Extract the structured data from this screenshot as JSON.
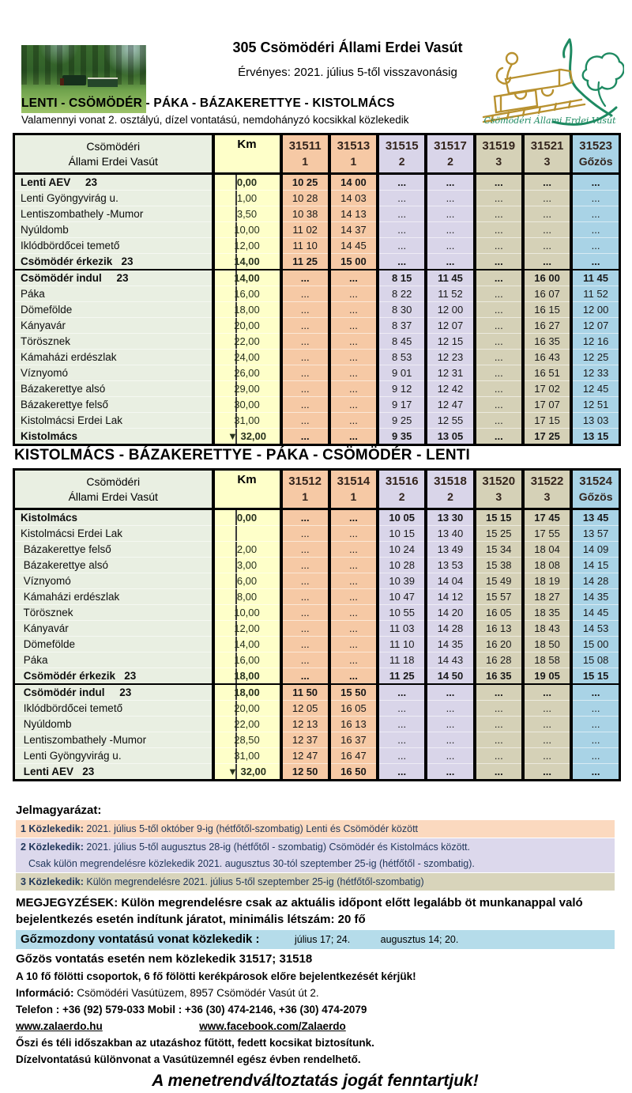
{
  "colors": {
    "peach": "#f6c9a5",
    "lavender": "#d9d5e9",
    "tan": "#d5d1b7",
    "blue": "#a9d3e6",
    "km_yellow": "#feffc9",
    "station_green": "#e9efe2",
    "legend_peach": "#fbd9bf",
    "legend_lavender": "#dcd8ec",
    "legend_tan": "#d8d4bb",
    "steam_bg": "#b5dcea",
    "logo_green": "#1e8a62",
    "logo_gold": "#b8912f"
  },
  "header": {
    "title": "305 Csömödéri Állami Erdei Vasút",
    "validity": "Érvényes: 2021. július 5-től visszavonásig",
    "route_line": "LENTI - CSÖMÖDÉR - PÁKA -  BÁZAKERETTYE - KISTOLMÁCS",
    "note": "Valamennyi vonat 2. osztályú, dízel vontatású, nemdohányzó kocsikkal közlekedik",
    "logo_caption": "Csömödéri Állami Erdei Vasút"
  },
  "section2_title": "KISTOLMÁCS - BÁZAKERETTYE - PÁKA - CSÖMÖDÉR - LENTI",
  "tables": [
    {
      "corner_line1": "Csömödéri",
      "corner_line2": "Állami Erdei Vasút",
      "km_label": "Km",
      "trains": [
        {
          "number": "31511",
          "note": "1",
          "color_key": "peach"
        },
        {
          "number": "31513",
          "note": "1",
          "color_key": "peach"
        },
        {
          "number": "31515",
          "note": "2",
          "color_key": "lavender"
        },
        {
          "number": "31517",
          "note": "2",
          "color_key": "lavender"
        },
        {
          "number": "31519",
          "note": "3",
          "color_key": "tan"
        },
        {
          "number": "31521",
          "note": "3",
          "color_key": "tan"
        },
        {
          "number": "31523",
          "note": "Gőzös",
          "color_key": "blue"
        }
      ],
      "rows": [
        {
          "station": "Lenti AEV     23",
          "km": "0,00",
          "b": true,
          "t": [
            "10 25",
            "14 00",
            "...",
            "...",
            "...",
            "...",
            "..."
          ]
        },
        {
          "station": "Lenti Gyöngyvirág u.",
          "km": "1,00",
          "t": [
            "10 28",
            "14 03",
            "...",
            "...",
            "...",
            "...",
            "..."
          ]
        },
        {
          "station": "Lentiszombathely -Mumor",
          "km": "3,50",
          "t": [
            "10 38",
            "14 13",
            "...",
            "...",
            "...",
            "...",
            "..."
          ]
        },
        {
          "station": "Nyúldomb",
          "km": "10,00",
          "t": [
            "11 02",
            "14 37",
            "...",
            "...",
            "...",
            "...",
            "..."
          ]
        },
        {
          "station": "Iklódbördőcei temető",
          "km": "12,00",
          "t": [
            "11 10",
            "14 45",
            "...",
            "...",
            "...",
            "...",
            "..."
          ]
        },
        {
          "station": "Csömödér érkezik   23",
          "km": "14,00",
          "b": true,
          "divider": true,
          "t": [
            "11 25",
            "15 00",
            "...",
            "...",
            "...",
            "...",
            "..."
          ]
        },
        {
          "station": "Csömödér indul     23",
          "km": "14,00",
          "b": true,
          "t": [
            "...",
            "...",
            "8 15",
            "11 45",
            "...",
            "16 00",
            "11 45"
          ]
        },
        {
          "station": "Páka",
          "km": "16,00",
          "t": [
            "...",
            "...",
            "8 22",
            "11 52",
            "...",
            "16 07",
            "11 52"
          ]
        },
        {
          "station": "Dömefölde",
          "km": "18,00",
          "t": [
            "...",
            "...",
            "8 30",
            "12 00",
            "...",
            "16 15",
            "12 00"
          ]
        },
        {
          "station": "Kányavár",
          "km": "20,00",
          "t": [
            "...",
            "...",
            "8 37",
            "12 07",
            "...",
            "16 27",
            "12 07"
          ]
        },
        {
          "station": "Törösznek",
          "km": "22,00",
          "t": [
            "...",
            "...",
            "8 45",
            "12 15",
            "...",
            "16 35",
            "12 16"
          ]
        },
        {
          "station": "Kámaházi erdészlak",
          "km": "24,00",
          "t": [
            "...",
            "...",
            "8 53",
            "12 23",
            "...",
            "16 43",
            "12 25"
          ]
        },
        {
          "station": "Víznyomó",
          "km": "26,00",
          "t": [
            "...",
            "...",
            "9 01",
            "12 31",
            "...",
            "16 51",
            "12 33"
          ]
        },
        {
          "station": "Bázakerettye alsó",
          "km": "29,00",
          "t": [
            "...",
            "...",
            "9 12",
            "12 42",
            "...",
            "17 02",
            "12 45"
          ]
        },
        {
          "station": "Bázakerettye felső",
          "km": "30,00",
          "t": [
            "...",
            "...",
            "9 17",
            "12 47",
            "...",
            "17 07",
            "12 51"
          ]
        },
        {
          "station": "Kistolmácsi Erdei Lak",
          "km": "31,00",
          "t": [
            "...",
            "...",
            "9 25",
            "12 55",
            "...",
            "17 15",
            "13 03"
          ]
        },
        {
          "station": "Kistolmács",
          "km": "▼ 32,00",
          "b": true,
          "t": [
            "...",
            "...",
            "9 35",
            "13 05",
            "...",
            "17 25",
            "13 15"
          ]
        }
      ]
    },
    {
      "corner_line1": "Csömödéri",
      "corner_line2": "Állami Erdei Vasút",
      "km_label": "Km",
      "trains": [
        {
          "number": "31512",
          "note": "1",
          "color_key": "peach"
        },
        {
          "number": "31514",
          "note": "1",
          "color_key": "peach"
        },
        {
          "number": "31516",
          "note": "2",
          "color_key": "lavender"
        },
        {
          "number": "31518",
          "note": "2",
          "color_key": "lavender"
        },
        {
          "number": "31520",
          "note": "3",
          "color_key": "tan"
        },
        {
          "number": "31522",
          "note": "3",
          "color_key": "tan"
        },
        {
          "number": "31524",
          "note": "Gőzös",
          "color_key": "blue"
        }
      ],
      "rows": [
        {
          "station": "Kistolmács",
          "km": "0,00",
          "b": true,
          "t": [
            "...",
            "...",
            "10 05",
            "13 30",
            "15 15",
            "17 45",
            "13 45"
          ]
        },
        {
          "station": "Kistolmácsi Erdei Lak",
          "km": "",
          "t": [
            "...",
            "...",
            "10 15",
            "13 40",
            "15 25",
            "17 55",
            "13 57"
          ]
        },
        {
          "station": " Bázakerettye felső",
          "km": "2,00",
          "t": [
            "...",
            "...",
            "10 24",
            "13 49",
            "15 34",
            "18 04",
            "14 09"
          ]
        },
        {
          "station": " Bázakerettye alsó",
          "km": "3,00",
          "t": [
            "...",
            "...",
            "10 28",
            "13 53",
            "15 38",
            "18 08",
            "14 15"
          ]
        },
        {
          "station": " Víznyomó",
          "km": "6,00",
          "t": [
            "...",
            "...",
            "10 39",
            "14 04",
            "15 49",
            "18 19",
            "14 28"
          ]
        },
        {
          "station": " Kámaházi erdészlak",
          "km": "8,00",
          "t": [
            "...",
            "...",
            "10 47",
            "14 12",
            "15 57",
            "18 27",
            "14 35"
          ]
        },
        {
          "station": " Törösznek",
          "km": "10,00",
          "t": [
            "...",
            "...",
            "10 55",
            "14 20",
            "16 05",
            "18 35",
            "14 45"
          ]
        },
        {
          "station": " Kányavár",
          "km": "12,00",
          "t": [
            "...",
            "...",
            "11 03",
            "14 28",
            "16 13",
            "18 43",
            "14 53"
          ]
        },
        {
          "station": " Dömefölde",
          "km": "14,00",
          "t": [
            "...",
            "...",
            "11 10",
            "14 35",
            "16 20",
            "18 50",
            "15 00"
          ]
        },
        {
          "station": " Páka",
          "km": "16,00",
          "t": [
            "...",
            "...",
            "11 18",
            "14 43",
            "16 28",
            "18 58",
            "15 08"
          ]
        },
        {
          "station": " Csömödér érkezik   23",
          "km": "18,00",
          "b": true,
          "divider": true,
          "t": [
            "...",
            "...",
            "11 25",
            "14 50",
            "16 35",
            "19 05",
            "15 15"
          ]
        },
        {
          "station": " Csömödér indul     23",
          "km": "18,00",
          "b": true,
          "t": [
            "11 50",
            "15 50",
            "...",
            "...",
            "...",
            "...",
            "..."
          ]
        },
        {
          "station": " Iklódbördőcei temető",
          "km": "20,00",
          "t": [
            "12 05",
            "16 05",
            "...",
            "...",
            "...",
            "...",
            "..."
          ]
        },
        {
          "station": " Nyúldomb",
          "km": "22,00",
          "t": [
            "12 13",
            "16 13",
            "...",
            "...",
            "...",
            "...",
            "..."
          ]
        },
        {
          "station": " Lentiszombathely -Mumor",
          "km": "28,50",
          "t": [
            "12 37",
            "16 37",
            "...",
            "...",
            "...",
            "...",
            "..."
          ]
        },
        {
          "station": " Lenti Gyöngyvirág u.",
          "km": "31,00",
          "t": [
            "12 47",
            "16 47",
            "...",
            "...",
            "...",
            "...",
            "..."
          ]
        },
        {
          "station": " Lenti AEV   23",
          "km": "▼ 32,00",
          "b": true,
          "t": [
            "12 50",
            "16 50",
            "...",
            "...",
            "...",
            "...",
            "..."
          ]
        }
      ]
    }
  ],
  "legend": {
    "title": "Jelmagyarázat:",
    "rows": [
      {
        "prefix": "1 Közlekedik:",
        "text": "  2021. július 5-től  október 9-ig (hétfőtől-szombatig) Lenti és Csömödér között"
      },
      {
        "prefix": "2 Közlekedik:",
        "text": " 2021. július 5-től  augusztus 28-ig (hétfőtől - szombatig) Csömödér és Kistolmács között.",
        "text2": "Csak külön megrendelésre közlekedik 2021. augusztus 30-tól szeptember 25-ig (hétfőtől - szombatig)."
      },
      {
        "prefix": "3 Közlekedik:",
        "text": " Külön megrendelésre 2021. július 5-től szeptember 25-ig (hétfőtől-szombatig)"
      }
    ]
  },
  "notes": {
    "megjegyzesek": "MEGJEGYZÉSEK: Külön megrendelésre csak az aktuális időpont előtt legalább öt munkanappal való bejelentkezés esetén indítunk járatot, minimális létszám: 20 fő",
    "steam_label": "Gőzmozdony vontatású vonat közlekedik :",
    "steam_dates_1": "július 17; 24.",
    "steam_dates_2": "augusztus 14; 20.",
    "steam_exclusion": "Gőzös vontatás esetén nem közlekedik 31517; 31518",
    "groups": "A 10 fő fölötti csoportok, 6 fő fölötti kerékpárosok előre bejelentkezését kérjük!",
    "info_prefix": "Információ:",
    "info_text": " Csömödéri Vasútüzem, 8957 Csömödér Vasút út 2.",
    "phone": "Telefon : +36 (92) 579-033 Mobil : +36 (30) 474-2146, +36 (30) 474-2079",
    "website": "www.zalaerdo.hu",
    "facebook": "www.facebook.com/Zalaerdo",
    "winter": "Őszi és téli időszakban az utazáshoz fűtött, fedett kocsikat biztosítunk.",
    "diesel": "Dízelvontatású különvonat a Vasútüzemnél egész évben rendelhető.",
    "disclaimer": "A menetrendváltoztatás jogát fenntartjuk!"
  }
}
